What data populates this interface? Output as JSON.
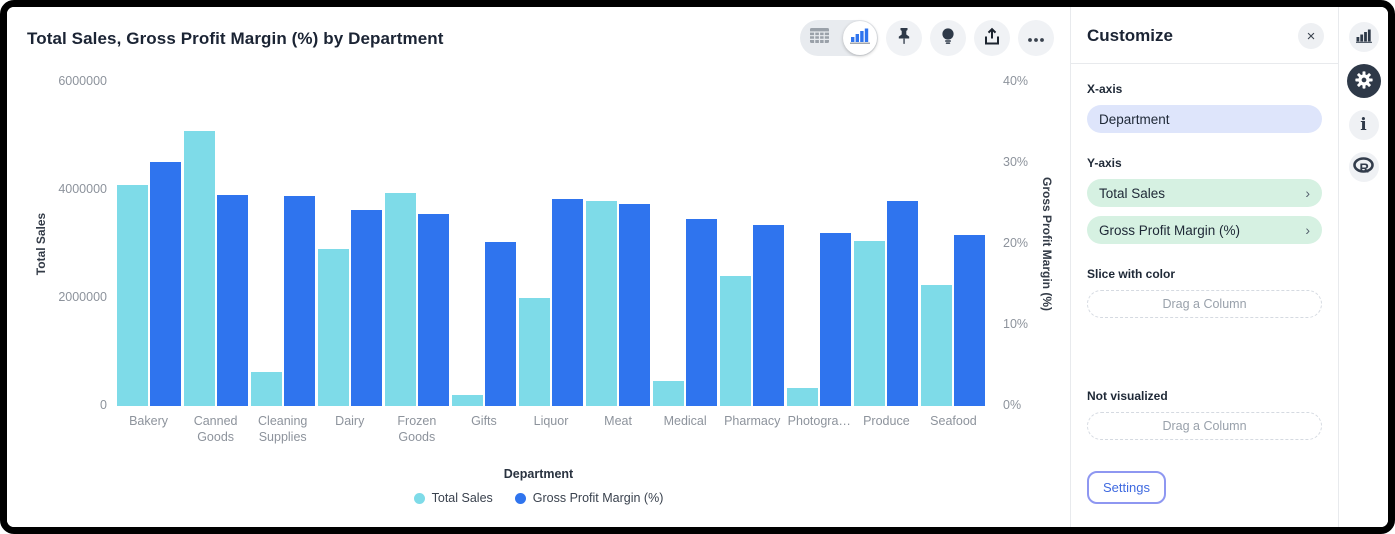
{
  "header": {
    "title": "Total Sales, Gross Profit Margin (%) by Department"
  },
  "toolbar": {
    "table_view_icon": "table-view",
    "chart_view_icon": "chart-view-selected",
    "pin_icon": "pin",
    "bulb_icon": "lightbulb",
    "share_icon": "share-export",
    "more_icon": "ellipsis"
  },
  "chart_data": {
    "type": "bar",
    "title": "Total Sales, Gross Profit Margin (%) by Department",
    "categories": [
      "Bakery",
      "Canned Goods",
      "Cleaning Supplies",
      "Dairy",
      "Frozen Goods",
      "Gifts",
      "Liquor",
      "Meat",
      "Medical",
      "Pharmacy",
      "Photogra…",
      "Produce",
      "Seafood"
    ],
    "series": [
      {
        "name": "Total Sales",
        "axis": "left",
        "color": "#7edbe8",
        "values": [
          4100000,
          5100000,
          630000,
          2900000,
          3950000,
          200000,
          2000000,
          3800000,
          460000,
          2400000,
          340000,
          3050000,
          2250000
        ]
      },
      {
        "name": "Gross Profit Margin (%)",
        "axis": "right",
        "color": "#2f74ee",
        "values": [
          30.1,
          26.0,
          25.9,
          24.2,
          23.7,
          20.3,
          25.5,
          24.9,
          23.1,
          22.4,
          21.4,
          25.3,
          21.1
        ]
      }
    ],
    "xlabel": "Department",
    "left_axis": {
      "label": "Total Sales",
      "range": [
        0,
        6000000
      ],
      "ticks": [
        0,
        2000000,
        4000000,
        6000000
      ],
      "tick_labels": [
        "0",
        "2000000",
        "4000000",
        "6000000"
      ]
    },
    "right_axis": {
      "label": "Gross Profit Margin (%)",
      "range": [
        0,
        40
      ],
      "ticks": [
        0,
        10,
        20,
        30,
        40
      ],
      "tick_labels": [
        "0%",
        "10%",
        "20%",
        "30%",
        "40%"
      ]
    },
    "legend": [
      "Total Sales",
      "Gross Profit Margin (%)"
    ],
    "legend_position": "bottom",
    "grid": false
  },
  "panel": {
    "title": "Customize",
    "close_icon": "×",
    "chevron": "›",
    "x_axis_label": "X-axis",
    "x_axis_value": "Department",
    "y_axis_label": "Y-axis",
    "y_axis_values": [
      "Total Sales",
      "Gross Profit Margin (%)"
    ],
    "slice_label": "Slice with color",
    "slice_placeholder": "Drag a Column",
    "not_visualized_label": "Not visualized",
    "not_visualized_placeholder": "Drag a Column",
    "settings_label": "Settings"
  }
}
